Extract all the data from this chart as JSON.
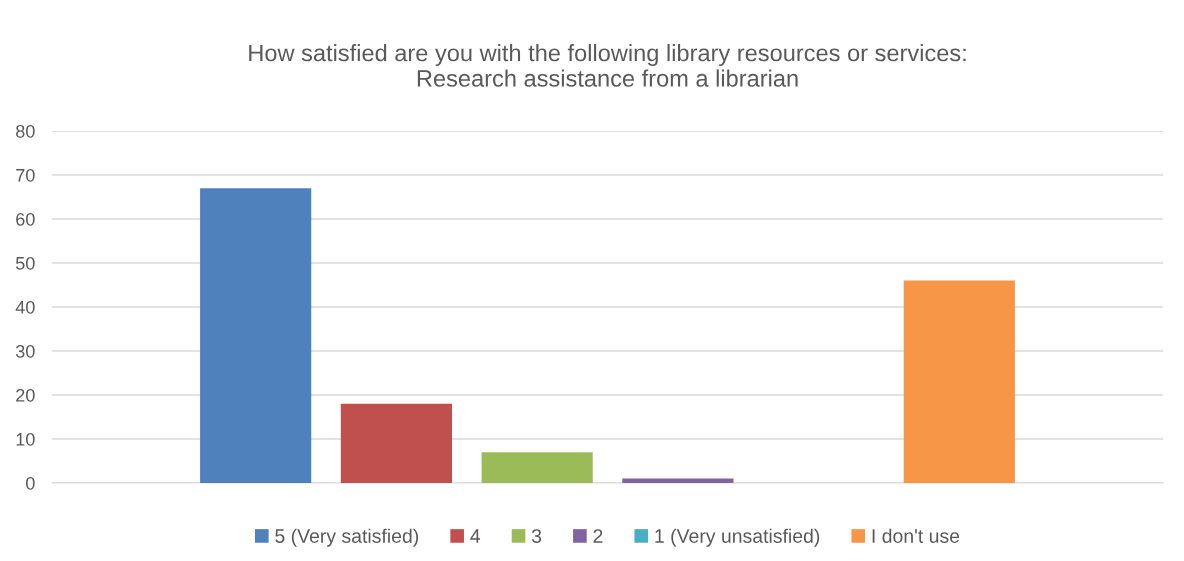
{
  "chart_data": {
    "type": "bar",
    "title": "How satisfied are you with the following library resources or services:\nResearch assistance from a librarian",
    "categories": [
      null
    ],
    "series": [
      {
        "name": "5 (Very satisfied)",
        "color": "#4f81bd",
        "values": [
          67
        ]
      },
      {
        "name": "4",
        "color": "#c0504d",
        "values": [
          18
        ]
      },
      {
        "name": "3",
        "color": "#9bbb59",
        "values": [
          7
        ]
      },
      {
        "name": "2",
        "color": "#8064a2",
        "values": [
          1
        ]
      },
      {
        "name": "1 (Very unsatisfied)",
        "color": "#4bacc6",
        "values": [
          0
        ]
      },
      {
        "name": "I don't use",
        "color": "#f79646",
        "values": [
          46
        ]
      }
    ],
    "ylim": [
      0,
      80
    ],
    "yticks": [
      0,
      10,
      20,
      30,
      40,
      50,
      60,
      70,
      80
    ],
    "grid": "y",
    "legend": "bottom",
    "tick_labels": "y"
  }
}
